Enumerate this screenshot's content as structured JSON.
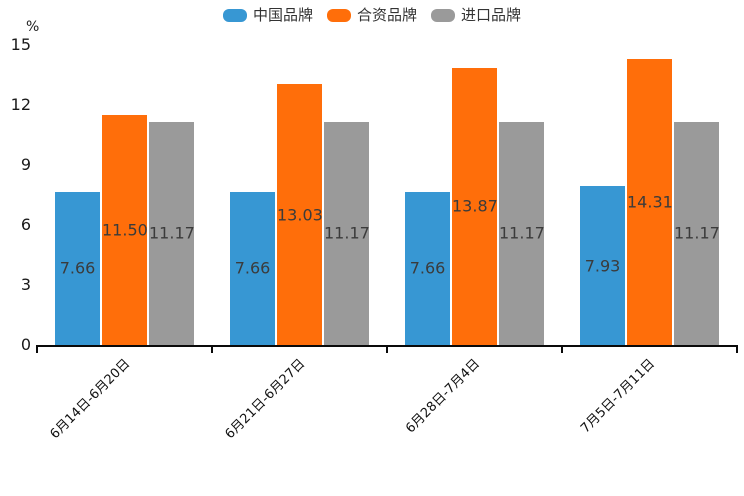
{
  "chart_data": {
    "type": "bar",
    "title": "",
    "ylabel": "%",
    "xlabel": "",
    "categories": [
      "6月14日-6月20日",
      "6月21日-6月27日",
      "6月28日-7月4日",
      "7月5日-7月11日"
    ],
    "series": [
      {
        "name": "中国品牌",
        "color": "#3797D3",
        "values": [
          7.66,
          7.66,
          7.66,
          7.93
        ]
      },
      {
        "name": "合资品牌",
        "color": "#FF6E0A",
        "values": [
          11.5,
          13.03,
          13.87,
          14.31
        ]
      },
      {
        "name": "进口品牌",
        "color": "#9A9A9A",
        "values": [
          11.17,
          11.17,
          11.17,
          11.17
        ]
      }
    ],
    "y_axis": {
      "min": 0,
      "max": 15,
      "tick_interval": 3,
      "ticks": [
        0,
        3,
        6,
        9,
        12,
        15
      ]
    },
    "legend_position": "top-center",
    "grid": false,
    "value_labels": "inside-center",
    "value_label_decimals": 2,
    "x_label_rotation_deg": 45
  }
}
